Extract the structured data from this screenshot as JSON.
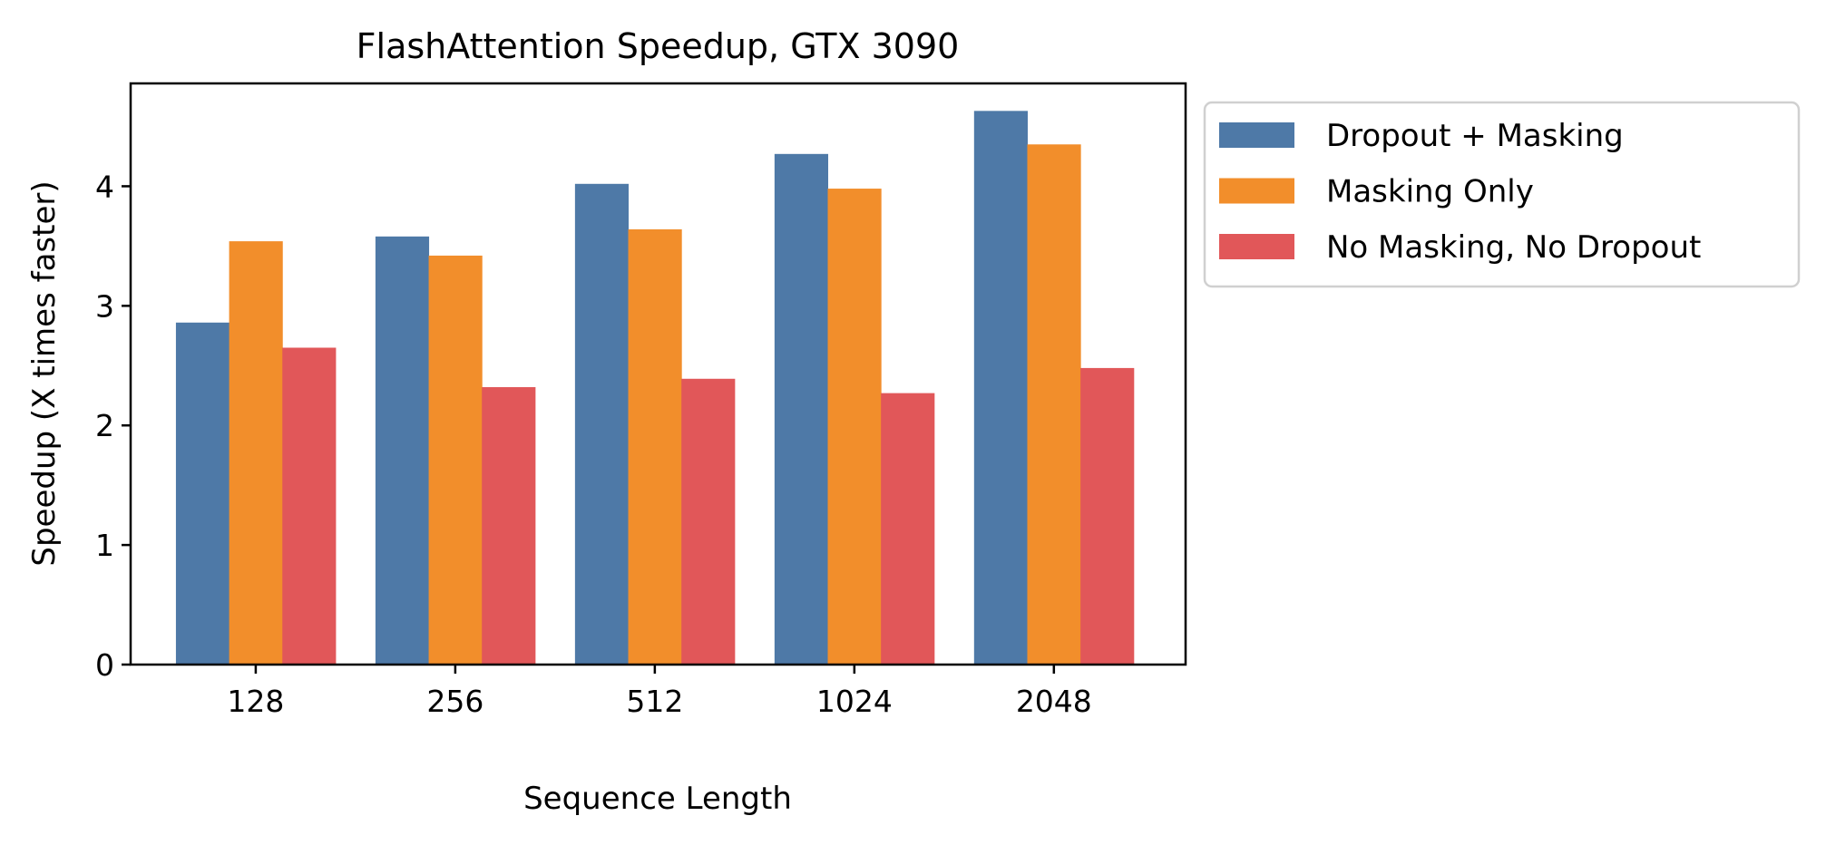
{
  "chart_data": {
    "type": "bar",
    "title": "FlashAttention Speedup, GTX 3090",
    "xlabel": "Sequence Length",
    "ylabel": "Speedup (X times faster)",
    "categories": [
      "128",
      "256",
      "512",
      "1024",
      "2048"
    ],
    "ylim": [
      0,
      4.86
    ],
    "yticks": [
      0,
      1,
      2,
      3,
      4
    ],
    "grid": false,
    "legend_placement": "outside-upper-right",
    "series": [
      {
        "name": "Dropout + Masking",
        "color": "#4e79a7",
        "values": [
          2.86,
          3.58,
          4.02,
          4.27,
          4.63
        ]
      },
      {
        "name": "Masking Only",
        "color": "#f28e2b",
        "values": [
          3.54,
          3.42,
          3.64,
          3.98,
          4.35
        ]
      },
      {
        "name": "No Masking, No Dropout",
        "color": "#e15759",
        "values": [
          2.65,
          2.32,
          2.39,
          2.27,
          2.48
        ]
      }
    ]
  }
}
